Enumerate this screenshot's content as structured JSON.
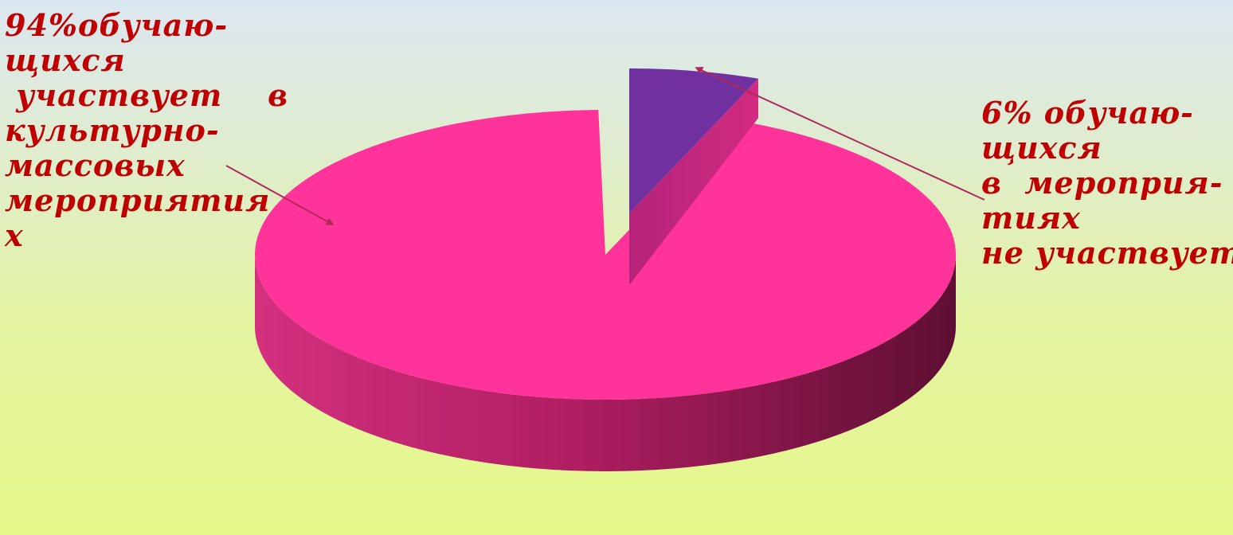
{
  "chart_data": {
    "type": "pie",
    "style": "3d-exploded",
    "slices": [
      {
        "label": "94%обучаю-щихся участвует в культурно-массовых мероприятиях",
        "value": 94,
        "color": "#ff339a"
      },
      {
        "label": "6% обучаю-щихся в мероприятиях не участвует",
        "value": 6,
        "color": "#7030a0"
      }
    ],
    "annotations": {
      "left": [
        "94%обучаю-",
        "щихся",
        " участвует    в",
        "культурно-",
        "массовых",
        "мероприятия",
        "х"
      ],
      "right": [
        "6% обучаю-",
        "щихся",
        "в  мероприя-",
        "тиях",
        "не участвует"
      ]
    },
    "legend": "none",
    "grid": false
  },
  "colors": {
    "main_slice": "#ff339a",
    "small_slice": "#7030a0",
    "label_text": "#c00000",
    "arrow": "#b0285a"
  }
}
